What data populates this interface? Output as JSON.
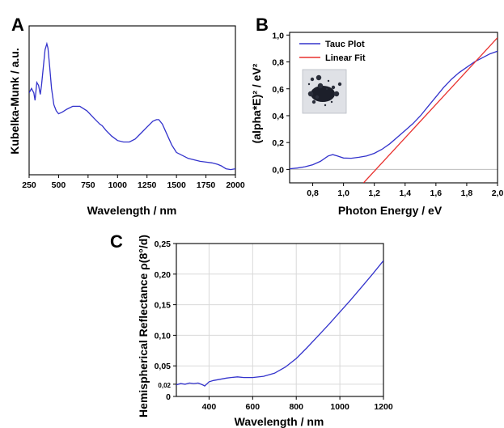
{
  "chart_data": [
    {
      "panel": "A",
      "type": "line",
      "xlabel": "Wavelength / nm",
      "ylabel": "Kubelka-Munk / a.u.",
      "xlim": [
        250,
        2000
      ],
      "ylim": [
        0,
        1
      ],
      "xticks": [
        250,
        500,
        750,
        1000,
        1250,
        1500,
        1750,
        2000
      ],
      "yticks": [],
      "series": [
        {
          "color": "#3333cc",
          "x": [
            250,
            270,
            290,
            300,
            315,
            330,
            345,
            355,
            370,
            385,
            400,
            410,
            425,
            440,
            460,
            480,
            500,
            530,
            570,
            620,
            680,
            740,
            800,
            850,
            870,
            900,
            950,
            1000,
            1050,
            1100,
            1150,
            1200,
            1250,
            1300,
            1330,
            1350,
            1380,
            1420,
            1460,
            1500,
            1600,
            1700,
            1800,
            1850,
            1880,
            1920,
            1960,
            2000
          ],
          "y": [
            0.55,
            0.58,
            0.55,
            0.5,
            0.62,
            0.6,
            0.54,
            0.6,
            0.72,
            0.84,
            0.88,
            0.85,
            0.72,
            0.58,
            0.47,
            0.43,
            0.41,
            0.42,
            0.44,
            0.46,
            0.46,
            0.43,
            0.38,
            0.34,
            0.33,
            0.3,
            0.26,
            0.23,
            0.22,
            0.22,
            0.24,
            0.28,
            0.32,
            0.36,
            0.37,
            0.37,
            0.34,
            0.27,
            0.2,
            0.15,
            0.11,
            0.09,
            0.08,
            0.07,
            0.06,
            0.04,
            0.035,
            0.04
          ]
        }
      ]
    },
    {
      "panel": "B",
      "type": "line",
      "xlabel": "Photon Energy / eV",
      "ylabel": "(alpha*E)² / eV²",
      "xlim": [
        0.65,
        2.0
      ],
      "ylim": [
        -0.1,
        1.02
      ],
      "xticks": [
        0.8,
        1.0,
        1.2,
        1.4,
        1.6,
        1.8,
        2.0
      ],
      "xtick_labels": [
        "0,8",
        "1,0",
        "1,2",
        "1,4",
        "1,6",
        "1,8",
        "2,0"
      ],
      "yticks": [
        0.0,
        0.2,
        0.4,
        0.6,
        0.8,
        1.0
      ],
      "ytick_labels": [
        "0,0",
        "0,2",
        "0,4",
        "0,6",
        "0,8",
        "1,0"
      ],
      "legend_position": "top-left",
      "series": [
        {
          "name": "Tauc Plot",
          "color": "#3333cc",
          "x": [
            0.65,
            0.7,
            0.75,
            0.8,
            0.85,
            0.9,
            0.93,
            0.96,
            1.0,
            1.05,
            1.1,
            1.15,
            1.2,
            1.25,
            1.3,
            1.35,
            1.4,
            1.45,
            1.5,
            1.55,
            1.6,
            1.65,
            1.7,
            1.75,
            1.8,
            1.85,
            1.9,
            1.95,
            2.0
          ],
          "y": [
            0.005,
            0.01,
            0.02,
            0.035,
            0.06,
            0.1,
            0.11,
            0.1,
            0.085,
            0.083,
            0.09,
            0.1,
            0.12,
            0.15,
            0.19,
            0.24,
            0.29,
            0.34,
            0.4,
            0.47,
            0.54,
            0.61,
            0.67,
            0.72,
            0.76,
            0.8,
            0.83,
            0.86,
            0.88
          ]
        },
        {
          "name": "Linear Fit",
          "color": "#e8322f",
          "x": [
            1.13,
            2.0
          ],
          "y": [
            -0.1,
            0.98
          ]
        }
      ],
      "inset": "photo of dark powder sample"
    },
    {
      "panel": "C",
      "type": "line",
      "xlabel": "Wavelength / nm",
      "ylabel": "Hemispherical Reflectance ρ(8°/d)",
      "xlim": [
        250,
        1200
      ],
      "ylim": [
        0,
        0.25
      ],
      "xticks": [
        400,
        600,
        800,
        1000,
        1200
      ],
      "yticks": [
        0,
        0.02,
        0.05,
        0.1,
        0.15,
        0.2,
        0.25
      ],
      "ytick_labels": [
        "0",
        "0,02",
        "0,05",
        "0,10",
        "0,15",
        "0,20",
        "0,25"
      ],
      "grid": true,
      "series": [
        {
          "color": "#3333cc",
          "x": [
            250,
            270,
            290,
            310,
            330,
            350,
            370,
            380,
            400,
            420,
            450,
            480,
            500,
            530,
            560,
            600,
            650,
            700,
            750,
            800,
            850,
            900,
            950,
            1000,
            1050,
            1100,
            1150,
            1200
          ],
          "y": [
            0.019,
            0.021,
            0.02,
            0.022,
            0.021,
            0.022,
            0.019,
            0.017,
            0.024,
            0.026,
            0.028,
            0.03,
            0.031,
            0.032,
            0.031,
            0.031,
            0.033,
            0.038,
            0.048,
            0.062,
            0.08,
            0.099,
            0.118,
            0.138,
            0.158,
            0.179,
            0.2,
            0.222
          ]
        }
      ]
    }
  ]
}
